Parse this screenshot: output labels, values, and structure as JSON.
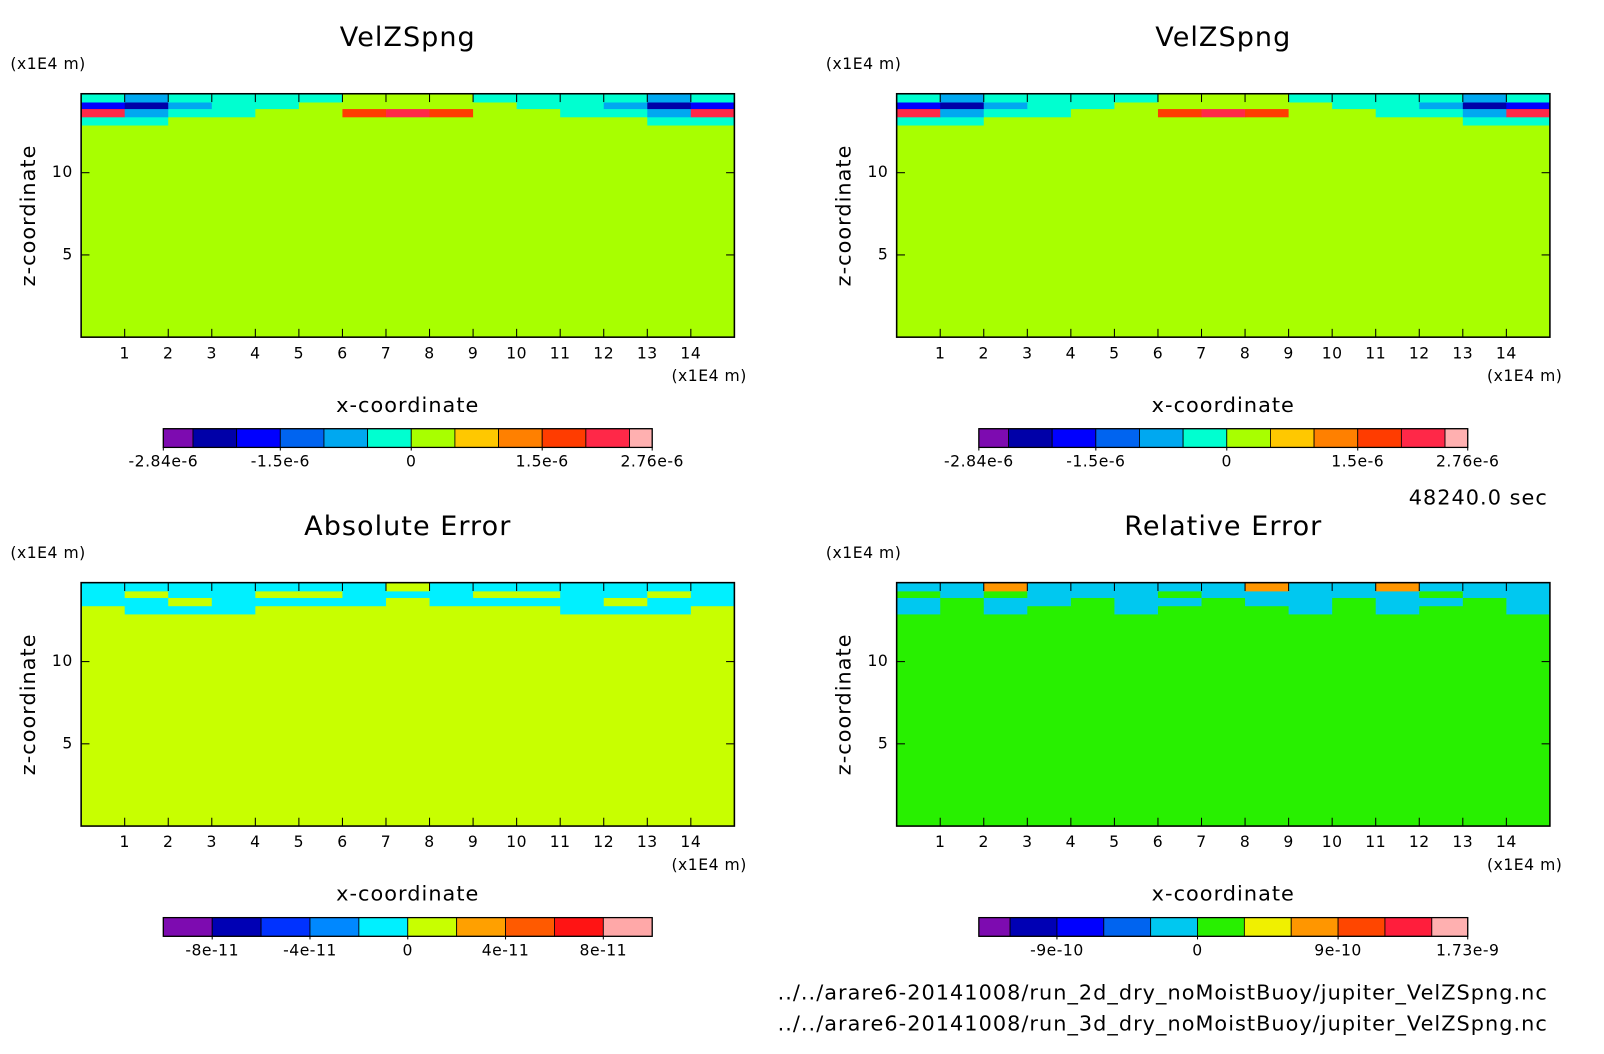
{
  "chart_data": [
    {
      "type": "contour",
      "title": "VelZSpng",
      "xlabel": "x-coordinate",
      "ylabel": "z-coordinate",
      "xunit": "(x1E4 m)",
      "yunit": "(x1E4 m)",
      "xlim": [
        0,
        15
      ],
      "ylim": [
        0,
        14.8
      ],
      "xticks": [
        1,
        2,
        3,
        4,
        5,
        6,
        7,
        8,
        9,
        10,
        11,
        12,
        13,
        14
      ],
      "yticks": [
        5,
        10
      ],
      "xedges": [
        0,
        1,
        2,
        3,
        4,
        5,
        6,
        7,
        8,
        9,
        10,
        11,
        12,
        13,
        14,
        15
      ],
      "zedges": [
        0,
        12.9,
        13.4,
        13.9,
        14.3,
        14.8
      ],
      "values": [
        [
          2e-07,
          2e-07,
          2e-07,
          2e-07,
          2e-07,
          2e-07,
          2e-07,
          2e-07,
          2e-07,
          2e-07,
          2e-07,
          2e-07,
          2e-07,
          2e-07,
          2e-07
        ],
        [
          -2e-07,
          -2e-07,
          2e-07,
          2e-07,
          2e-07,
          2e-07,
          2e-07,
          2e-07,
          2e-07,
          2e-07,
          2e-07,
          2e-07,
          2e-07,
          -2e-07,
          -2e-07
        ],
        [
          2.2e-06,
          -7e-07,
          -2e-07,
          -2e-07,
          2e-07,
          2e-07,
          1.7e-06,
          2.2e-06,
          1.7e-06,
          2e-07,
          2e-07,
          -2e-07,
          -2e-07,
          -7e-07,
          2.2e-06
        ],
        [
          -1.7e-06,
          -2.2e-06,
          -7e-07,
          -2e-07,
          -2e-07,
          2e-07,
          2e-07,
          2e-07,
          2e-07,
          2e-07,
          -2e-07,
          -2e-07,
          -7e-07,
          -2.2e-06,
          -1.7e-06
        ],
        [
          -2e-07,
          -7e-07,
          -2e-07,
          -2e-07,
          -2e-07,
          -2e-07,
          2e-07,
          2e-07,
          2e-07,
          -2e-07,
          -2e-07,
          -2e-07,
          -2e-07,
          -7e-07,
          -2e-07
        ]
      ],
      "colorbar": {
        "levels": [
          -2.84e-06,
          -2.5e-06,
          -2e-06,
          -1.5e-06,
          -1e-06,
          -5e-07,
          0,
          5e-07,
          1e-06,
          1.5e-06,
          2e-06,
          2.5e-06,
          2.76e-06
        ],
        "colors": [
          "#7d0bb0",
          "#0000a8",
          "#0000ff",
          "#0064f0",
          "#00a8f0",
          "#00ffd0",
          "#a8ff00",
          "#ffc800",
          "#ff8000",
          "#ff3c00",
          "#ff2848",
          "#ffb0b0"
        ],
        "ticks": [
          {
            "value": -2.84e-06,
            "label": "-2.84e-6"
          },
          {
            "value": -1.5e-06,
            "label": "-1.5e-6"
          },
          0,
          {
            "value": 1.5e-06,
            "label": "1.5e-6"
          },
          {
            "value": 2.76e-06,
            "label": "2.76e-6"
          }
        ]
      }
    },
    {
      "type": "contour",
      "title": "VelZSpng",
      "xlabel": "x-coordinate",
      "ylabel": "z-coordinate",
      "xunit": "(x1E4 m)",
      "yunit": "(x1E4 m)",
      "xlim": [
        0,
        15
      ],
      "ylim": [
        0,
        14.8
      ],
      "xticks": [
        1,
        2,
        3,
        4,
        5,
        6,
        7,
        8,
        9,
        10,
        11,
        12,
        13,
        14
      ],
      "yticks": [
        5,
        10
      ],
      "xedges": [
        0,
        1,
        2,
        3,
        4,
        5,
        6,
        7,
        8,
        9,
        10,
        11,
        12,
        13,
        14,
        15
      ],
      "zedges": [
        0,
        12.9,
        13.4,
        13.9,
        14.3,
        14.8
      ],
      "values": [
        [
          2e-07,
          2e-07,
          2e-07,
          2e-07,
          2e-07,
          2e-07,
          2e-07,
          2e-07,
          2e-07,
          2e-07,
          2e-07,
          2e-07,
          2e-07,
          2e-07,
          2e-07
        ],
        [
          -2e-07,
          -2e-07,
          2e-07,
          2e-07,
          2e-07,
          2e-07,
          2e-07,
          2e-07,
          2e-07,
          2e-07,
          2e-07,
          2e-07,
          2e-07,
          -2e-07,
          -2e-07
        ],
        [
          2.2e-06,
          -7e-07,
          -2e-07,
          -2e-07,
          2e-07,
          2e-07,
          1.7e-06,
          2.2e-06,
          1.7e-06,
          2e-07,
          2e-07,
          -2e-07,
          -2e-07,
          -7e-07,
          2.2e-06
        ],
        [
          -1.7e-06,
          -2.2e-06,
          -7e-07,
          -2e-07,
          -2e-07,
          2e-07,
          2e-07,
          2e-07,
          2e-07,
          2e-07,
          -2e-07,
          -2e-07,
          -7e-07,
          -2.2e-06,
          -1.7e-06
        ],
        [
          -2e-07,
          -7e-07,
          -2e-07,
          -2e-07,
          -2e-07,
          -2e-07,
          2e-07,
          2e-07,
          2e-07,
          -2e-07,
          -2e-07,
          -2e-07,
          -2e-07,
          -7e-07,
          -2e-07
        ]
      ],
      "colorbar": {
        "levels": [
          -2.84e-06,
          -2.5e-06,
          -2e-06,
          -1.5e-06,
          -1e-06,
          -5e-07,
          0,
          5e-07,
          1e-06,
          1.5e-06,
          2e-06,
          2.5e-06,
          2.76e-06
        ],
        "colors": [
          "#7d0bb0",
          "#0000a8",
          "#0000ff",
          "#0064f0",
          "#00a8f0",
          "#00ffd0",
          "#a8ff00",
          "#ffc800",
          "#ff8000",
          "#ff3c00",
          "#ff2848",
          "#ffb0b0"
        ],
        "ticks": [
          {
            "value": -2.84e-06,
            "label": "-2.84e-6"
          },
          {
            "value": -1.5e-06,
            "label": "-1.5e-6"
          },
          0,
          {
            "value": 1.5e-06,
            "label": "1.5e-6"
          },
          {
            "value": 2.76e-06,
            "label": "2.76e-6"
          }
        ]
      }
    },
    {
      "type": "contour",
      "title": "Absolute Error",
      "xlabel": "x-coordinate",
      "ylabel": "z-coordinate",
      "xunit": "(x1E4 m)",
      "yunit": "(x1E4 m)",
      "xlim": [
        0,
        15
      ],
      "ylim": [
        0,
        14.8
      ],
      "xticks": [
        1,
        2,
        3,
        4,
        5,
        6,
        7,
        8,
        9,
        10,
        11,
        12,
        13,
        14
      ],
      "yticks": [
        5,
        10
      ],
      "xedges": [
        0,
        1,
        2,
        3,
        4,
        5,
        6,
        7,
        8,
        9,
        10,
        11,
        12,
        13,
        14,
        15
      ],
      "zedges": [
        0,
        12.9,
        13.4,
        13.9,
        14.3,
        14.8
      ],
      "values": [
        [
          1e-11,
          1e-11,
          1e-11,
          1e-11,
          1e-11,
          1e-11,
          1e-11,
          1e-11,
          1e-11,
          1e-11,
          1e-11,
          1e-11,
          1e-11,
          1e-11,
          1e-11
        ],
        [
          1e-11,
          -1e-11,
          -1e-11,
          -1e-11,
          1e-11,
          1e-11,
          1e-11,
          1e-11,
          1e-11,
          1e-11,
          1e-11,
          -1e-11,
          -1e-11,
          -1e-11,
          1e-11
        ],
        [
          -1e-11,
          -1e-11,
          1e-11,
          -1e-11,
          -1e-11,
          -1e-11,
          -1e-11,
          1e-11,
          -1e-11,
          -1e-11,
          -1e-11,
          -1e-11,
          1e-11,
          -1e-11,
          -1e-11
        ],
        [
          -1e-11,
          1e-11,
          -1e-11,
          -1e-11,
          1e-11,
          1e-11,
          -1e-11,
          -1e-11,
          -1e-11,
          1e-11,
          1e-11,
          -1e-11,
          -1e-11,
          1e-11,
          -1e-11
        ],
        [
          -1e-11,
          -1e-11,
          -1e-11,
          -1e-11,
          -1e-11,
          -1e-11,
          -1e-11,
          1e-11,
          -1e-11,
          -1e-11,
          -1e-11,
          -1e-11,
          -1e-11,
          -1e-11,
          -1e-11
        ]
      ],
      "colorbar": {
        "levels": [
          -1e-10,
          -8e-11,
          -6e-11,
          -4e-11,
          -2e-11,
          0,
          2e-11,
          4e-11,
          6e-11,
          8e-11,
          1e-10
        ],
        "colors": [
          "#7d0bb0",
          "#0000b4",
          "#0032ff",
          "#0088ff",
          "#00f0ff",
          "#c8ff00",
          "#ffa000",
          "#ff5a00",
          "#ff1414",
          "#ffa8a8"
        ],
        "ticks": [
          {
            "value": -8e-11,
            "label": "-8e-11"
          },
          {
            "value": -4e-11,
            "label": "-4e-11"
          },
          0,
          {
            "value": 4e-11,
            "label": "4e-11"
          },
          {
            "value": 8e-11,
            "label": "8e-11"
          }
        ]
      }
    },
    {
      "type": "contour",
      "title": "Relative Error",
      "xlabel": "x-coordinate",
      "ylabel": "z-coordinate",
      "xunit": "(x1E4 m)",
      "yunit": "(x1E4 m)",
      "xlim": [
        0,
        15
      ],
      "ylim": [
        0,
        14.8
      ],
      "xticks": [
        1,
        2,
        3,
        4,
        5,
        6,
        7,
        8,
        9,
        10,
        11,
        12,
        13,
        14
      ],
      "yticks": [
        5,
        10
      ],
      "xedges": [
        0,
        1,
        2,
        3,
        4,
        5,
        6,
        7,
        8,
        9,
        10,
        11,
        12,
        13,
        14,
        15
      ],
      "zedges": [
        0,
        12.9,
        13.4,
        13.9,
        14.3,
        14.8
      ],
      "values": [
        [
          1e-10,
          1e-10,
          1e-10,
          1e-10,
          1e-10,
          1e-10,
          1e-10,
          1e-10,
          1e-10,
          1e-10,
          1e-10,
          1e-10,
          1e-10,
          1e-10,
          1e-10
        ],
        [
          -1e-10,
          1e-10,
          -1e-10,
          1e-10,
          1e-10,
          -1e-10,
          1e-10,
          1e-10,
          1e-10,
          -1e-10,
          1e-10,
          -1e-10,
          1e-10,
          1e-10,
          -1e-10
        ],
        [
          -1e-10,
          1e-10,
          -1e-10,
          -1e-10,
          1e-10,
          -1e-10,
          -1e-10,
          1e-10,
          -1e-10,
          -1e-10,
          1e-10,
          -1e-10,
          -1e-10,
          1e-10,
          -1e-10
        ],
        [
          1e-10,
          -1e-10,
          1e-10,
          -1e-10,
          -1e-10,
          -1e-10,
          1e-10,
          -1e-10,
          -1e-10,
          -1e-10,
          -1e-10,
          -1e-10,
          1e-10,
          -1e-10,
          -1e-10
        ],
        [
          -1e-10,
          -1e-10,
          7e-10,
          -1e-10,
          -1e-10,
          -1e-10,
          -1e-10,
          -1e-10,
          7e-10,
          -1e-10,
          -1e-10,
          7e-10,
          -1e-10,
          -1e-10,
          -1e-10
        ]
      ],
      "colorbar": {
        "levels": [
          -1.4e-09,
          -1.2e-09,
          -9e-10,
          -6e-10,
          -3e-10,
          0,
          3e-10,
          6e-10,
          9e-10,
          1.2e-09,
          1.5e-09,
          1.73e-09
        ],
        "colors": [
          "#7d0bb0",
          "#0000b4",
          "#0000ff",
          "#0064f0",
          "#00c8f0",
          "#28f000",
          "#f0f000",
          "#ff9600",
          "#ff4600",
          "#ff1e3c",
          "#ffb0b0"
        ],
        "ticks": [
          {
            "value": -9e-10,
            "label": "-9e-10"
          },
          0,
          {
            "value": 9e-10,
            "label": "9e-10"
          },
          {
            "value": 1.73e-09,
            "label": "1.73e-9"
          }
        ]
      }
    }
  ],
  "time": "48240.0 sec",
  "files": [
    "../../arare6-20141008/run_2d_dry_noMoistBuoy/jupiter_VelZSpng.nc",
    "../../arare6-20141008/run_3d_dry_noMoistBuoy/jupiter_VelZSpng.nc"
  ]
}
